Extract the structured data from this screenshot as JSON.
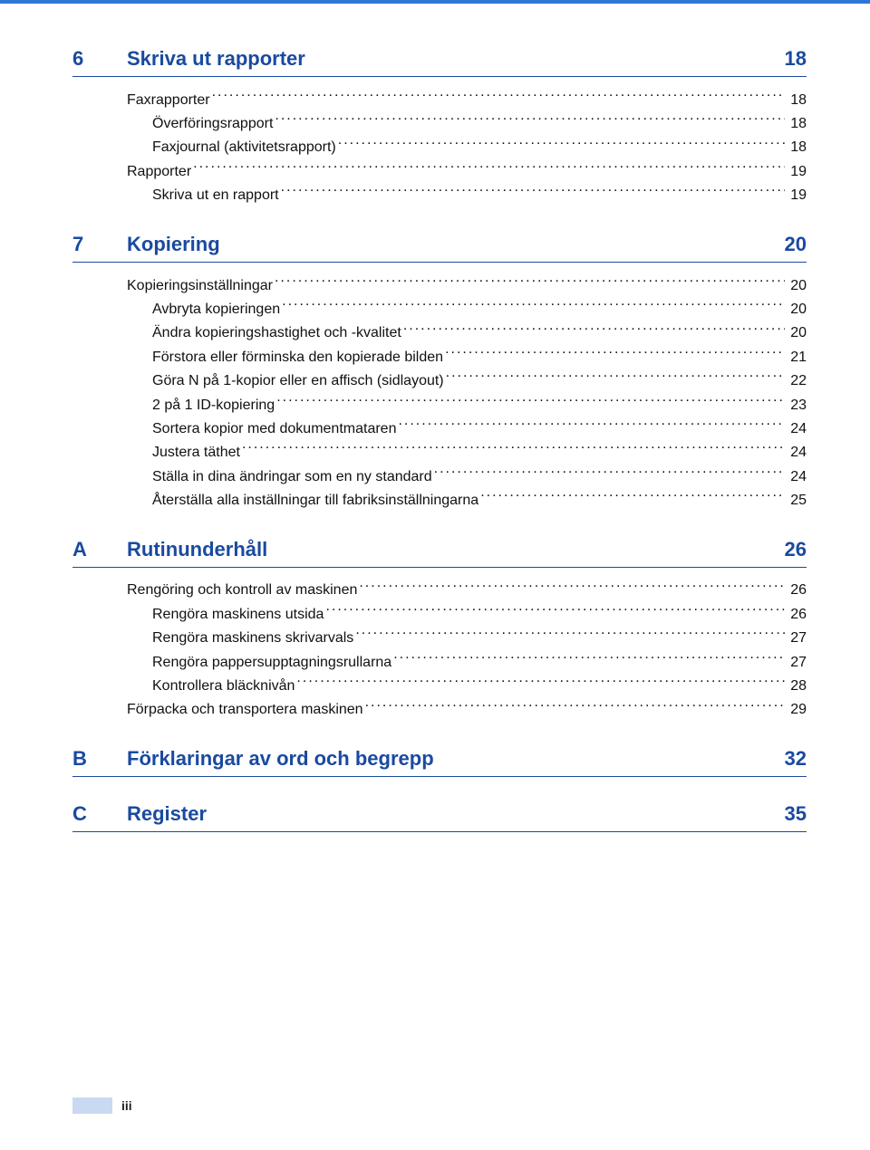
{
  "colors": {
    "heading": "#1a4aa0",
    "top_border": "#2e75d6",
    "rule": "#1a4aa0",
    "footer_block": "#c9d9f2",
    "text": "#111111",
    "background": "#ffffff"
  },
  "page_number": "iii",
  "sections": [
    {
      "num": "6",
      "title": "Skriva ut rapporter",
      "page": "18",
      "entries": [
        {
          "label": "Faxrapporter",
          "page": "18",
          "indent": 0
        },
        {
          "label": "Överföringsrapport",
          "page": "18",
          "indent": 1
        },
        {
          "label": "Faxjournal (aktivitetsrapport)",
          "page": "18",
          "indent": 1
        },
        {
          "label": "Rapporter",
          "page": "19",
          "indent": 0
        },
        {
          "label": "Skriva ut en rapport",
          "page": "19",
          "indent": 1
        }
      ]
    },
    {
      "num": "7",
      "title": "Kopiering",
      "page": "20",
      "entries": [
        {
          "label": "Kopieringsinställningar",
          "page": "20",
          "indent": 0
        },
        {
          "label": "Avbryta kopieringen",
          "page": "20",
          "indent": 1
        },
        {
          "label": "Ändra kopieringshastighet och -kvalitet",
          "page": "20",
          "indent": 1
        },
        {
          "label": "Förstora eller förminska den kopierade bilden",
          "page": "21",
          "indent": 1
        },
        {
          "label": "Göra N på 1-kopior eller en affisch (sidlayout)",
          "page": "22",
          "indent": 1
        },
        {
          "label": "2 på 1 ID-kopiering",
          "page": "23",
          "indent": 1
        },
        {
          "label": "Sortera kopior med dokumentmataren",
          "page": "24",
          "indent": 1
        },
        {
          "label": "Justera täthet",
          "page": "24",
          "indent": 1
        },
        {
          "label": "Ställa in dina ändringar som en ny standard",
          "page": "24",
          "indent": 1
        },
        {
          "label": "Återställa alla inställningar till fabriksinställningarna",
          "page": "25",
          "indent": 1
        }
      ]
    },
    {
      "num": "A",
      "title": "Rutinunderhåll",
      "page": "26",
      "entries": [
        {
          "label": "Rengöring och kontroll av maskinen",
          "page": "26",
          "indent": 0
        },
        {
          "label": "Rengöra maskinens utsida",
          "page": "26",
          "indent": 1
        },
        {
          "label": "Rengöra maskinens skrivarvals",
          "page": "27",
          "indent": 1
        },
        {
          "label": "Rengöra pappersupptagningsrullarna",
          "page": "27",
          "indent": 1
        },
        {
          "label": "Kontrollera bläcknivån",
          "page": "28",
          "indent": 1
        },
        {
          "label": "Förpacka och transportera maskinen",
          "page": "29",
          "indent": 0
        }
      ]
    },
    {
      "num": "B",
      "title": "Förklaringar av ord och begrepp",
      "page": "32",
      "entries": []
    },
    {
      "num": "C",
      "title": "Register",
      "page": "35",
      "entries": []
    }
  ]
}
